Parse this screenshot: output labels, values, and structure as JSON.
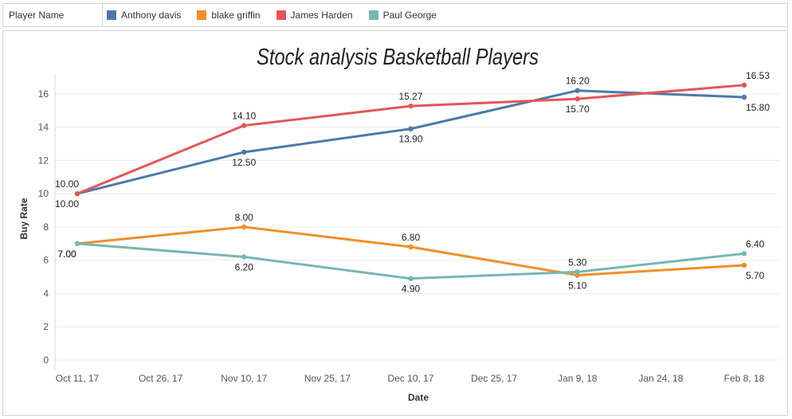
{
  "legend": {
    "field_label": "Player Name",
    "items": [
      {
        "name": "Anthony davis",
        "color": "#4e79a7"
      },
      {
        "name": "blake griffin",
        "color": "#f28e2b"
      },
      {
        "name": "James Harden",
        "color": "#e15759"
      },
      {
        "name": "Paul George",
        "color": "#76b7b2"
      }
    ]
  },
  "chart_data": {
    "type": "line",
    "title": "Stock analysis Basketball Players",
    "xlabel": "Date",
    "ylabel": "Buy Rate",
    "ylim": [
      0,
      17
    ],
    "yticks": [
      0,
      2,
      4,
      6,
      8,
      10,
      12,
      14,
      16
    ],
    "xticks": [
      "Oct 11, 17",
      "Oct 26, 17",
      "Nov 10, 17",
      "Nov 25, 17",
      "Dec 10, 17",
      "Dec 25, 17",
      "Jan 9, 18",
      "Jan 24, 18",
      "Feb 8, 18"
    ],
    "x": [
      "Oct 11, 17",
      "Nov 10, 17",
      "Dec 10, 17",
      "Jan 9, 18",
      "Feb 8, 18"
    ],
    "series": [
      {
        "name": "Anthony davis",
        "color": "#4e79a7",
        "values": [
          10.0,
          12.5,
          13.9,
          16.2,
          15.8
        ],
        "labels": [
          "10.00",
          "12.50",
          "13.90",
          "16.20",
          "15.80"
        ]
      },
      {
        "name": "blake griffin",
        "color": "#f28e2b",
        "values": [
          7.0,
          8.0,
          6.8,
          5.1,
          5.7
        ],
        "labels": [
          "7.00",
          "8.00",
          "6.80",
          "5.10",
          "5.70"
        ]
      },
      {
        "name": "James Harden",
        "color": "#e15759",
        "values": [
          10.0,
          14.1,
          15.27,
          15.7,
          16.53
        ],
        "labels": [
          "10.00",
          "14.10",
          "15.27",
          "15.70",
          "16.53"
        ]
      },
      {
        "name": "Paul George",
        "color": "#76b7b2",
        "values": [
          7.0,
          6.2,
          4.9,
          5.3,
          6.4
        ],
        "labels": [
          "7.00",
          "6.20",
          "4.90",
          "5.30",
          "6.40"
        ]
      }
    ],
    "grid": true,
    "legend_position": "top"
  }
}
